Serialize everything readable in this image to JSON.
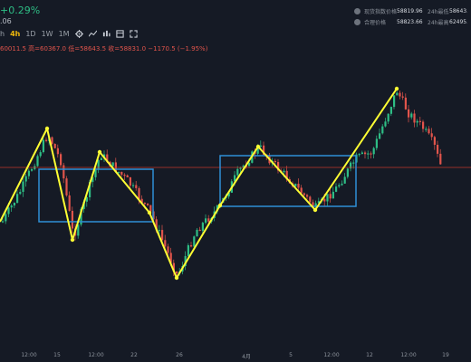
{
  "header": {
    "price_change": "+0.29%",
    "price_sub": ".06",
    "timeframes": [
      {
        "label": "h",
        "active": false
      },
      {
        "label": "4h",
        "active": true
      },
      {
        "label": "1D",
        "active": false
      },
      {
        "label": "1W",
        "active": false
      },
      {
        "label": "1M",
        "active": false
      }
    ],
    "ohlc": "60011.5 高=60367.0 低=58643.5 收=58831.0 −1170.5 (−1.95%)"
  },
  "stats": [
    {
      "label": "现货指数价格",
      "value": "58819.96",
      "label2": "24h最低",
      "value2": "58643."
    },
    {
      "label": "合理价格",
      "value": "58823.66",
      "label2": "24h最高",
      "value2": "62495."
    }
  ],
  "x_axis": {
    "ticks": [
      "12:00",
      "15",
      "12:00",
      "22",
      "26",
      "4月",
      "5",
      "12:00",
      "12",
      "12:00",
      "19"
    ]
  },
  "colors": {
    "background": "#151a25",
    "up": "#2ebd85",
    "down": "#e0544b",
    "zigzag": "#ffff33",
    "box": "#2e8fd6",
    "price_line": "#c0392b"
  },
  "chart_data": {
    "type": "candlestick",
    "title": "",
    "xlabel": "",
    "ylabel": "",
    "categories": [
      "12:00",
      "15",
      "12:00",
      "22",
      "26",
      "4月",
      "5",
      "12:00",
      "12",
      "12:00",
      "19"
    ]
  }
}
